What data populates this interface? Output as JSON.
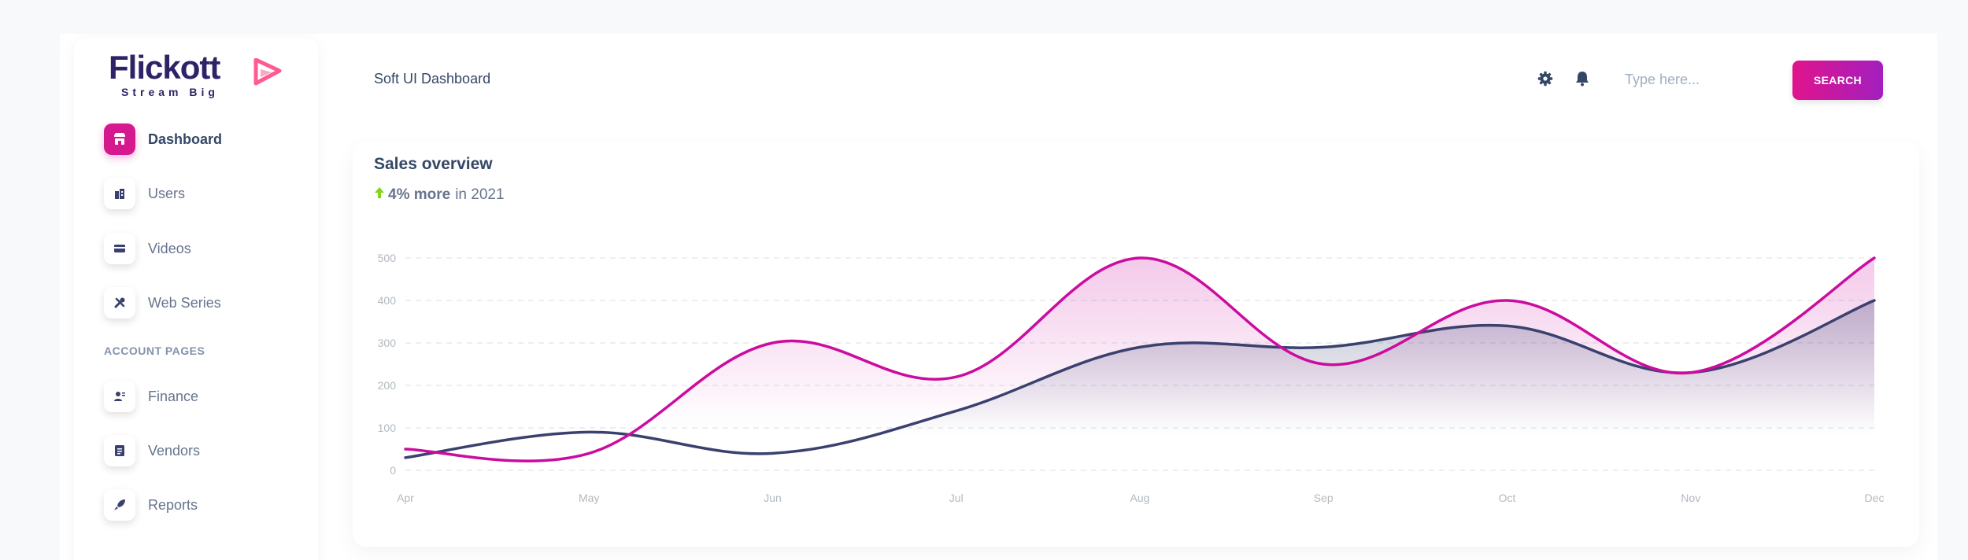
{
  "brand": {
    "name": "Flickott",
    "tagline": "Stream Big",
    "mark_colors": [
      "#ff4d8d",
      "#f472b6"
    ]
  },
  "sidebar": {
    "items": [
      {
        "label": "Dashboard",
        "icon": "shop-icon",
        "active": true
      },
      {
        "label": "Users",
        "icon": "office-icon",
        "active": false
      },
      {
        "label": "Videos",
        "icon": "credit-card-icon",
        "active": false
      },
      {
        "label": "Web Series",
        "icon": "settings-tools-icon",
        "active": false
      }
    ],
    "section_title": "ACCOUNT PAGES",
    "account_items": [
      {
        "label": "Finance",
        "icon": "profile-icon",
        "active": false
      },
      {
        "label": "Vendors",
        "icon": "document-icon",
        "active": false
      },
      {
        "label": "Reports",
        "icon": "rocket-icon",
        "active": false
      }
    ]
  },
  "header": {
    "breadcrumb": "Soft UI Dashboard",
    "settings_icon": "gear-icon",
    "notifications_icon": "bell-icon",
    "search": {
      "placeholder": "Type here...",
      "value": ""
    },
    "search_button": "SEARCH"
  },
  "colors": {
    "accent": "#d6188e",
    "series_1": "#cb0c9f",
    "series_2": "#3a416f",
    "positive": "#82d616"
  },
  "card": {
    "title": "Sales overview",
    "change_icon": "arrow-up-icon",
    "change_value": "4% more",
    "change_suffix": "in 2021"
  },
  "chart_data": {
    "type": "area",
    "categories": [
      "Apr",
      "May",
      "Jun",
      "Jul",
      "Aug",
      "Sep",
      "Oct",
      "Nov",
      "Dec"
    ],
    "series": [
      {
        "values": [
          50,
          40,
          300,
          220,
          500,
          250,
          400,
          230,
          500
        ],
        "color": "#cb0c9f"
      },
      {
        "values": [
          30,
          90,
          40,
          140,
          290,
          290,
          340,
          230,
          400
        ],
        "color": "#3a416f"
      }
    ],
    "yticks": [
      0,
      100,
      200,
      300,
      400,
      500
    ],
    "ylim": [
      0,
      500
    ],
    "grid": true,
    "legend": "none",
    "curve": "smooth"
  }
}
